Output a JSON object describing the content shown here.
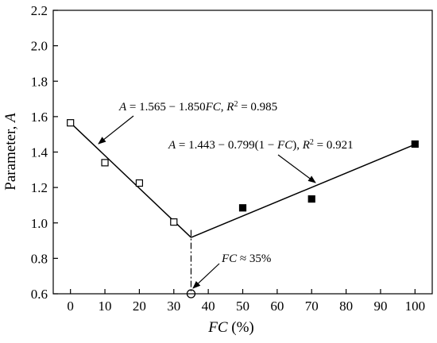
{
  "chart_data": {
    "type": "scatter",
    "xlabel": {
      "var": "FC",
      "unit": " (%)"
    },
    "ylabel": {
      "text": "Parameter, ",
      "var": "A"
    },
    "xlim": [
      -5,
      105
    ],
    "ylim": [
      0.6,
      2.2
    ],
    "xticks": [
      0,
      10,
      20,
      30,
      40,
      50,
      60,
      70,
      80,
      90,
      100
    ],
    "yticks": [
      "0.6",
      "0.8",
      "1.0",
      "1.2",
      "1.4",
      "1.6",
      "1.8",
      "2.0",
      "2.2"
    ],
    "grid": false,
    "series": [
      {
        "marker": "open-square",
        "points": [
          [
            0,
            1.565
          ],
          [
            10,
            1.34
          ],
          [
            20,
            1.225
          ],
          [
            30,
            1.005
          ]
        ]
      },
      {
        "marker": "filled-square",
        "points": [
          [
            50,
            1.085
          ],
          [
            70,
            1.135
          ],
          [
            100,
            1.445
          ]
        ]
      }
    ],
    "fit_lines": [
      {
        "x": [
          0,
          35
        ],
        "y": [
          1.565,
          0.918
        ]
      },
      {
        "x": [
          35,
          100
        ],
        "y": [
          0.918,
          1.443
        ]
      }
    ],
    "threshold": {
      "x": 35,
      "y_top": 0.96,
      "y_bottom": 0.6
    },
    "annotations": {
      "eq1": {
        "parts": [
          "A",
          " = 1.565 − 1.850",
          "FC",
          ", ",
          "R",
          "2",
          " = 0.985"
        ]
      },
      "eq2": {
        "parts": [
          "A",
          " = 1.443 − 0.799(1 − ",
          "FC",
          "), ",
          "R",
          "2",
          " = 0.921"
        ]
      },
      "threshold_label": {
        "parts": [
          "FC",
          " ≈ 35%"
        ]
      }
    }
  }
}
